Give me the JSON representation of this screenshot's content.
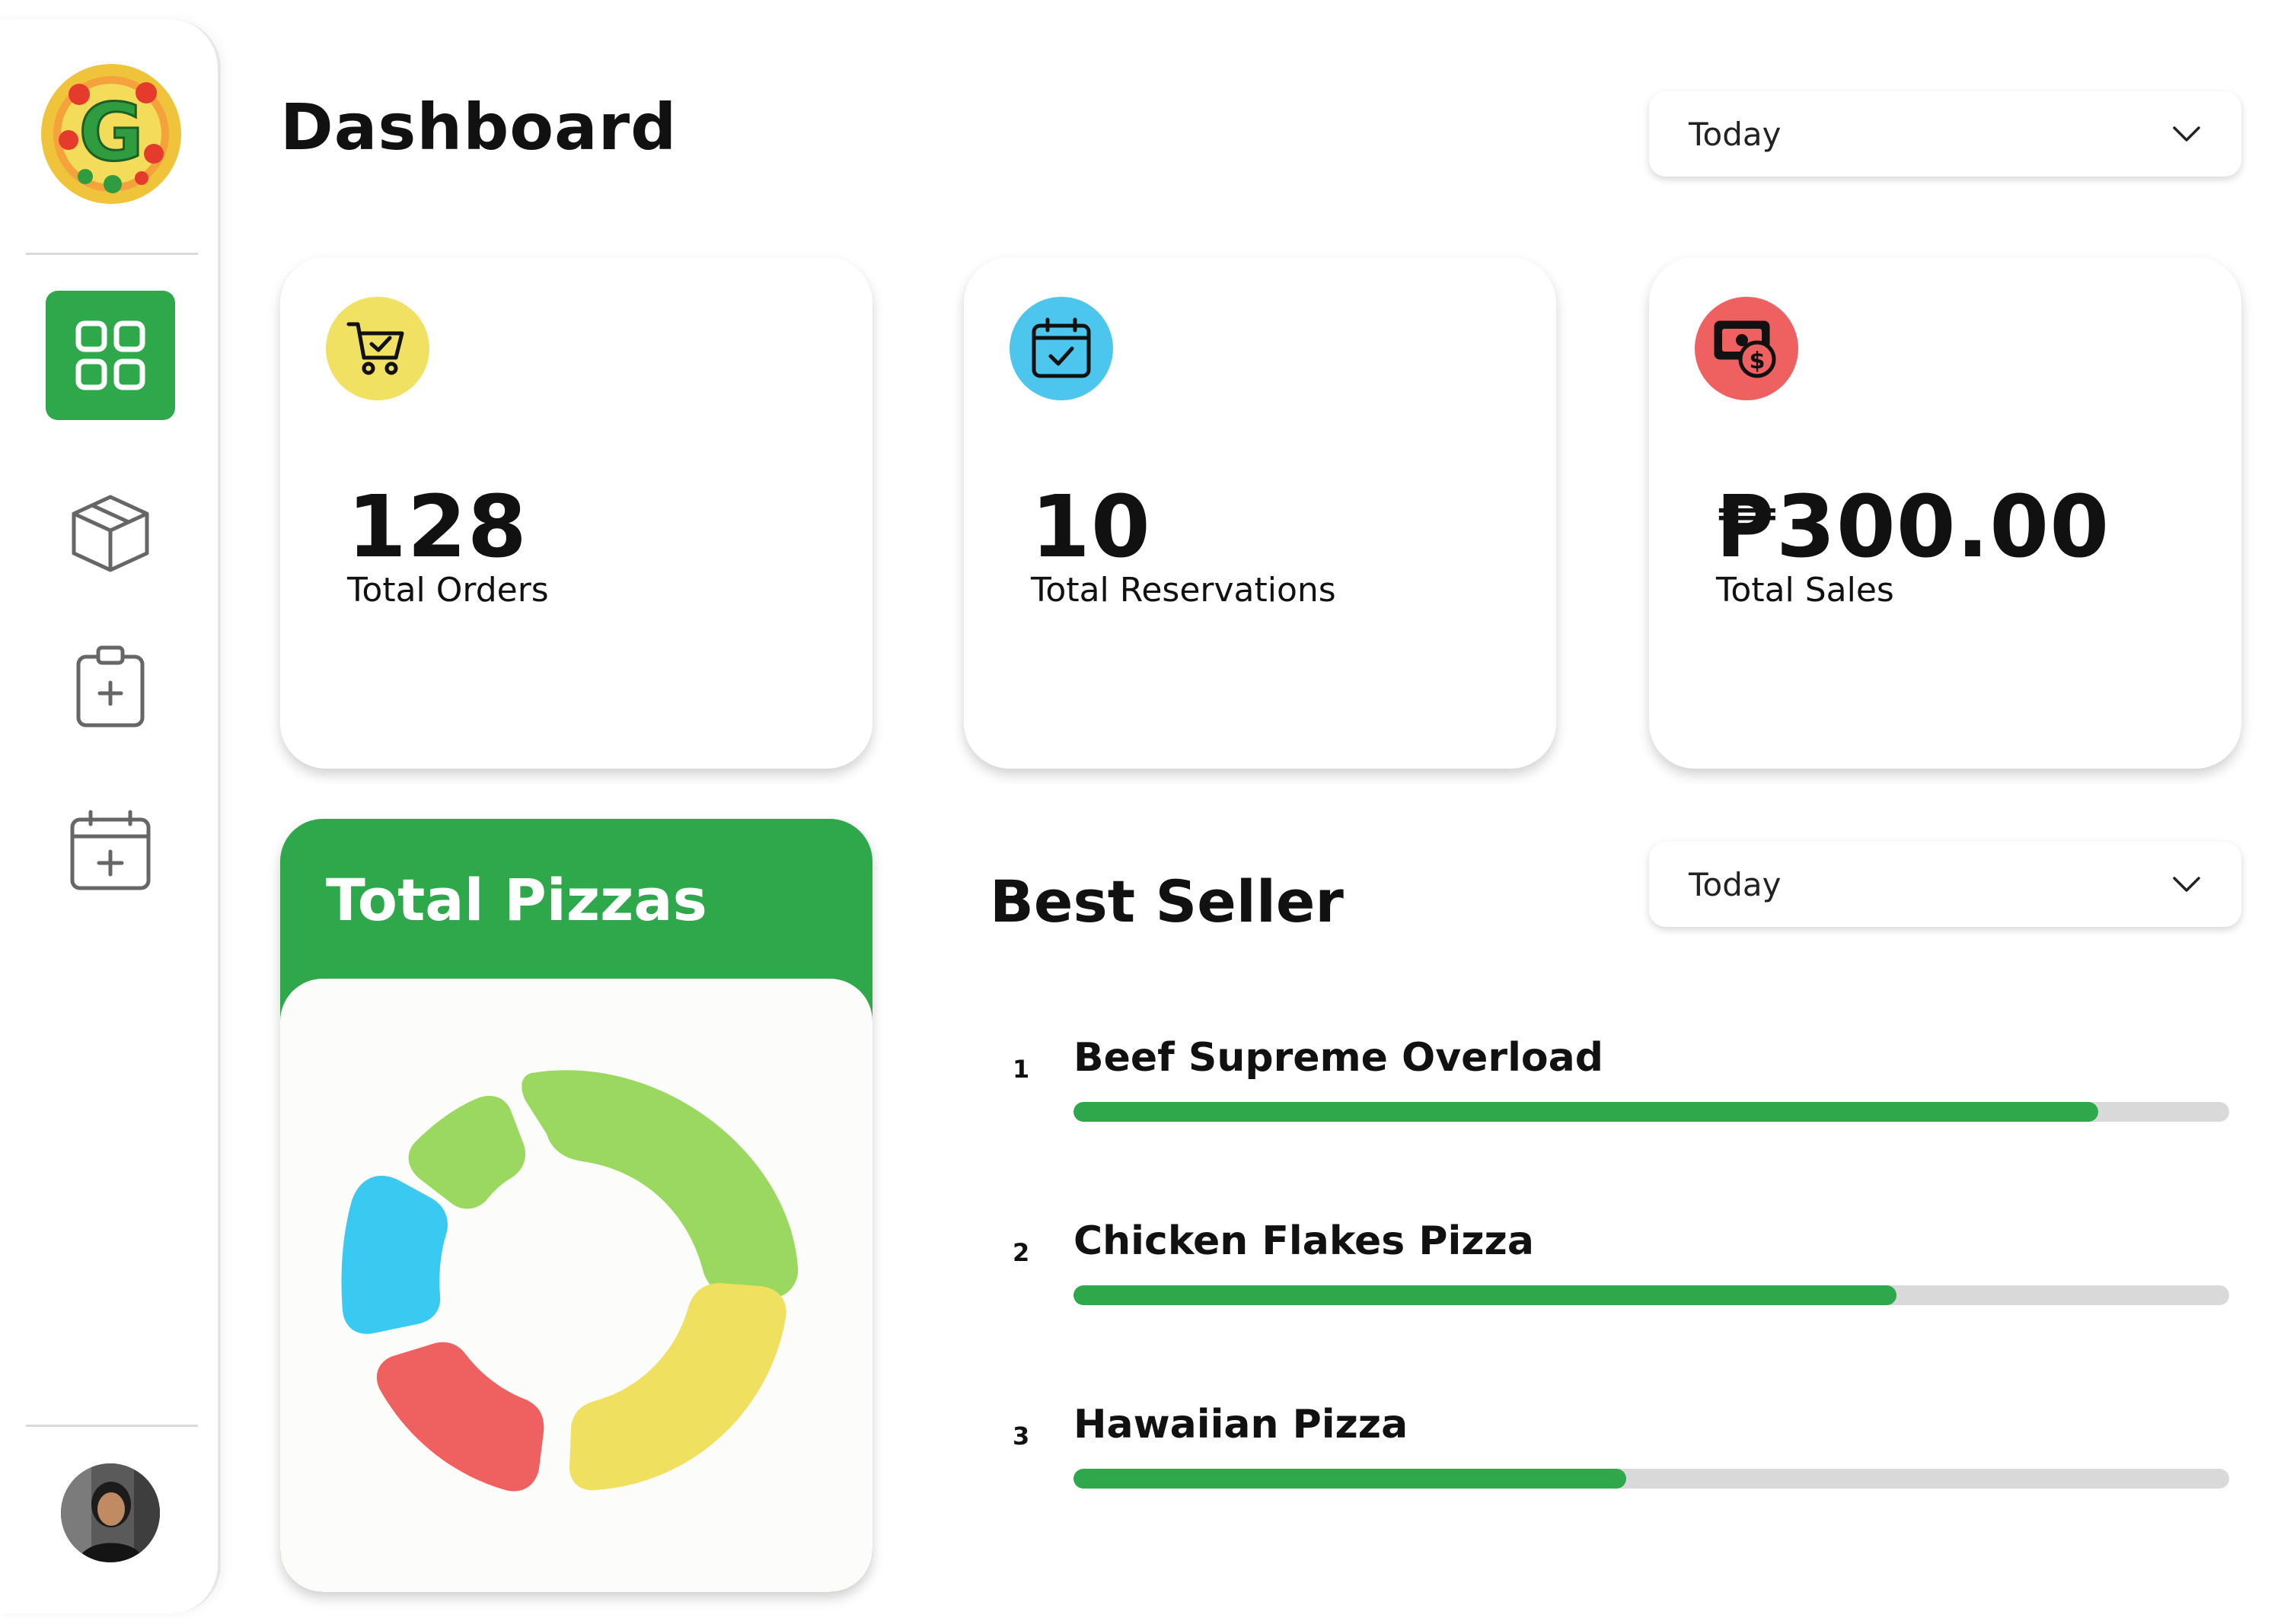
{
  "app": {
    "title": "Dashboard"
  },
  "sidebar": {
    "logo_letter": "G",
    "items": [
      {
        "name": "dashboard",
        "icon": "grid-icon",
        "active": true
      },
      {
        "name": "inventory",
        "icon": "box-icon",
        "active": false
      },
      {
        "name": "add-order",
        "icon": "clipboard-add-icon",
        "active": false
      },
      {
        "name": "add-reservation",
        "icon": "calendar-add-icon",
        "active": false
      }
    ],
    "avatar": "user-avatar"
  },
  "header": {
    "period_filter": "Today"
  },
  "stats": [
    {
      "value": "128",
      "label": "Total Orders",
      "icon": "cart-check-icon",
      "color": "#f0e162"
    },
    {
      "value": "10",
      "label": "Total Reservations",
      "icon": "calendar-check-icon",
      "color": "#4cc6ec"
    },
    {
      "value": "₱300.00",
      "label": "Total Sales",
      "icon": "money-icon",
      "color": "#ef6060"
    }
  ],
  "total_pizzas": {
    "title": "Total Pizzas",
    "colors": [
      "#9bd85f",
      "#efe05f",
      "#ef6060",
      "#3ac9f0",
      "#9bd85f"
    ]
  },
  "best_seller": {
    "title": "Best Seller",
    "period_filter": "Today",
    "items": [
      {
        "rank": "1",
        "name": "Beef Supreme Overload",
        "progress": 0.887
      },
      {
        "rank": "2",
        "name": "Chicken Flakes Pizza",
        "progress": 0.712
      },
      {
        "rank": "3",
        "name": "Hawaiian Pizza",
        "progress": 0.478
      }
    ]
  }
}
